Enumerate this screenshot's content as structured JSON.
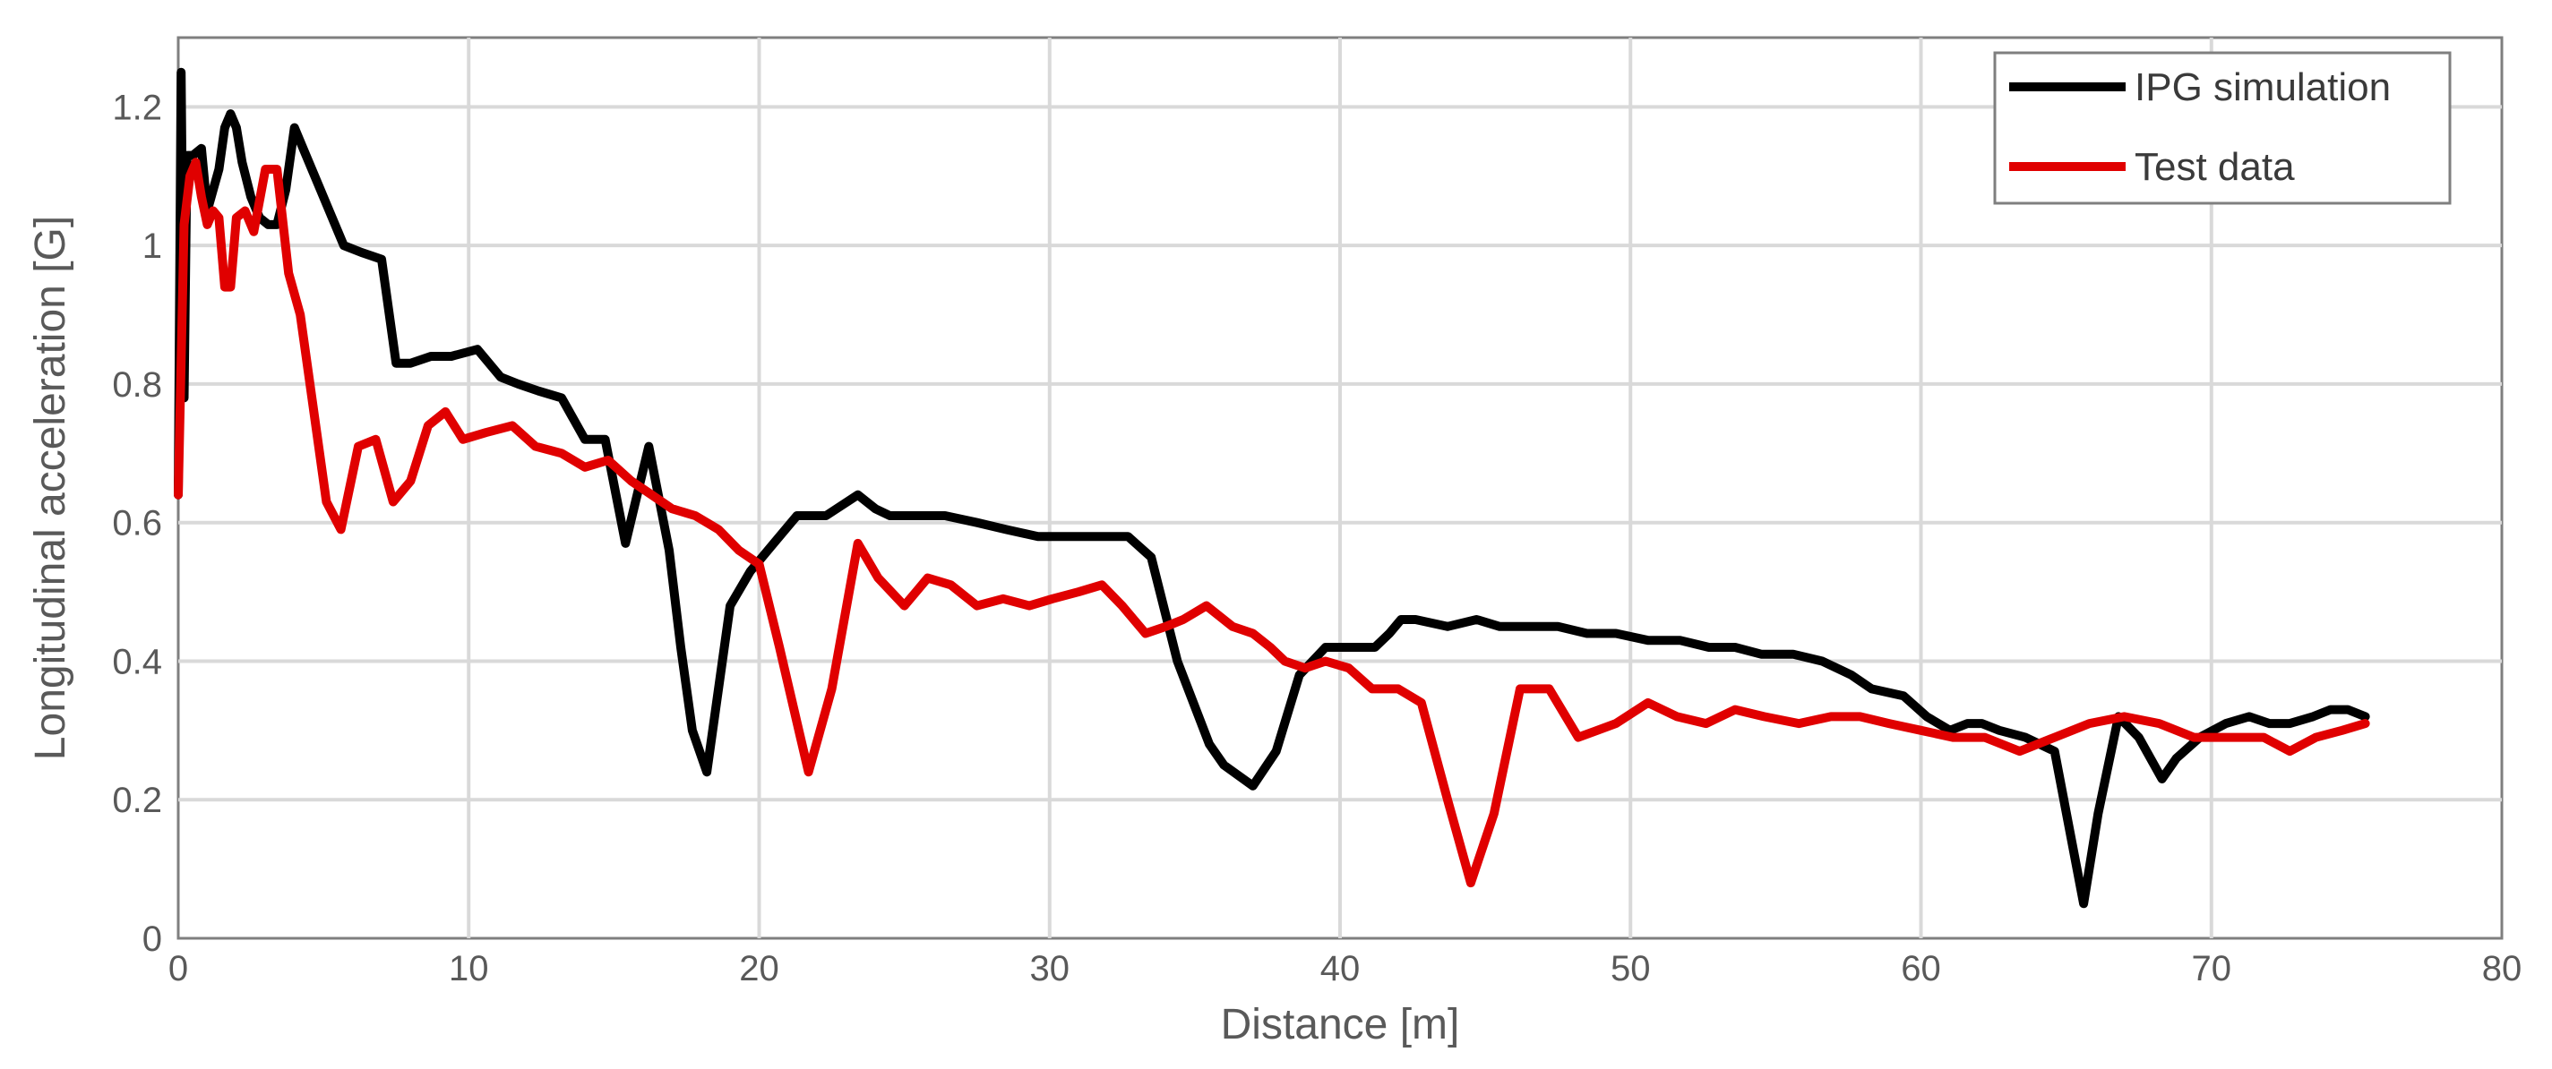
{
  "chart_data": {
    "type": "line",
    "xlabel": "Distance [m]",
    "ylabel": "Longitudinal acceleration [G]",
    "xlim": [
      0,
      80
    ],
    "ylim": [
      0,
      1.3
    ],
    "xticks": [
      0,
      10,
      20,
      30,
      40,
      50,
      60,
      70,
      80
    ],
    "yticks": [
      0,
      0.2,
      0.4,
      0.6,
      0.8,
      1,
      1.2
    ],
    "ytick_labels": [
      "0",
      "0.2",
      "0.4",
      "0.6",
      "0.8",
      "1",
      "1.2"
    ],
    "grid": true,
    "legend_position": "top-right",
    "series": [
      {
        "name": "IPG simulation",
        "color": "#000000",
        "x": [
          0,
          0.1,
          0.2,
          0.3,
          0.5,
          0.8,
          1.0,
          1.2,
          1.4,
          1.6,
          1.8,
          2.0,
          2.2,
          2.5,
          2.8,
          3.1,
          3.4,
          3.7,
          4.0,
          4.3,
          4.7,
          5.2,
          5.7,
          6.3,
          7.0,
          7.5,
          8.0,
          8.7,
          9.4,
          10.3,
          11.1,
          11.7,
          12.4,
          13.2,
          14.0,
          14.7,
          15.4,
          16.2,
          16.9,
          17.3,
          17.7,
          18.2,
          19.0,
          19.7,
          20.5,
          21.3,
          22.3,
          23.4,
          24.0,
          24.5,
          25.3,
          26.4,
          27.5,
          28.5,
          29.6,
          30.7,
          31.7,
          32.7,
          33.5,
          34.4,
          35.5,
          36.0,
          37.0,
          37.8,
          38.6,
          39.5,
          40.4,
          41.2,
          41.7,
          42.1,
          42.6,
          43.7,
          44.7,
          45.5,
          46.5,
          47.5,
          48.5,
          49.5,
          50.6,
          51.7,
          52.7,
          53.6,
          54.5,
          55.6,
          56.6,
          57.6,
          58.3,
          59.4,
          60.2,
          61.0,
          61.6,
          62.1,
          62.7,
          63.6,
          64.6,
          65.6,
          66.1,
          66.8,
          67.5,
          68.3,
          68.8,
          69.6,
          70.5,
          71.3,
          72.0,
          72.7,
          73.5,
          74.1,
          74.7,
          75.3
        ],
        "y": [
          0.64,
          1.25,
          0.78,
          1.13,
          1.13,
          1.14,
          1.05,
          1.08,
          1.11,
          1.17,
          1.19,
          1.17,
          1.12,
          1.07,
          1.04,
          1.03,
          1.03,
          1.08,
          1.17,
          1.14,
          1.1,
          1.05,
          1.0,
          0.99,
          0.98,
          0.83,
          0.83,
          0.84,
          0.84,
          0.85,
          0.81,
          0.8,
          0.79,
          0.78,
          0.72,
          0.72,
          0.57,
          0.71,
          0.56,
          0.42,
          0.3,
          0.24,
          0.48,
          0.53,
          0.57,
          0.61,
          0.61,
          0.64,
          0.62,
          0.61,
          0.61,
          0.61,
          0.6,
          0.59,
          0.58,
          0.58,
          0.58,
          0.58,
          0.55,
          0.4,
          0.28,
          0.25,
          0.22,
          0.27,
          0.38,
          0.42,
          0.42,
          0.42,
          0.44,
          0.46,
          0.46,
          0.45,
          0.46,
          0.45,
          0.45,
          0.45,
          0.44,
          0.44,
          0.43,
          0.43,
          0.42,
          0.42,
          0.41,
          0.41,
          0.4,
          0.38,
          0.36,
          0.35,
          0.32,
          0.3,
          0.31,
          0.31,
          0.3,
          0.29,
          0.27,
          0.05,
          0.18,
          0.32,
          0.29,
          0.23,
          0.26,
          0.29,
          0.31,
          0.32,
          0.31,
          0.31,
          0.32,
          0.33,
          0.33,
          0.32
        ],
        "_note": null
      },
      {
        "name": "Test data",
        "color": "#e00000",
        "x": [
          0,
          0.2,
          0.4,
          0.6,
          0.8,
          1.0,
          1.2,
          1.4,
          1.6,
          1.8,
          2.0,
          2.3,
          2.6,
          3.0,
          3.4,
          3.8,
          4.2,
          4.6,
          5.1,
          5.6,
          6.2,
          6.8,
          7.4,
          8.0,
          8.6,
          9.2,
          9.8,
          10.6,
          11.5,
          12.3,
          13.2,
          14.0,
          14.8,
          15.6,
          16.3,
          17.0,
          17.8,
          18.6,
          19.3,
          20.0,
          20.7,
          21.7,
          22.5,
          23.4,
          24.1,
          25.0,
          25.8,
          26.6,
          27.5,
          28.4,
          29.3,
          30.1,
          31.0,
          31.8,
          32.5,
          33.3,
          34.0,
          34.6,
          35.4,
          36.3,
          37.0,
          37.6,
          38.1,
          38.8,
          39.5,
          40.3,
          41.1,
          42.0,
          42.8,
          43.7,
          44.5,
          45.3,
          46.2,
          47.2,
          48.2,
          49.5,
          50.6,
          51.6,
          52.6,
          53.6,
          54.6,
          55.8,
          56.9,
          57.9,
          58.9,
          60.0,
          61.1,
          62.2,
          63.4,
          64.6,
          65.8,
          67.0,
          68.2,
          69.4,
          70.6,
          71.8,
          72.7,
          73.6,
          74.5,
          75.3
        ],
        "y": [
          0.64,
          1.03,
          1.1,
          1.12,
          1.07,
          1.03,
          1.05,
          1.04,
          0.94,
          0.94,
          1.04,
          1.05,
          1.02,
          1.11,
          1.11,
          0.96,
          0.9,
          0.78,
          0.63,
          0.59,
          0.71,
          0.72,
          0.63,
          0.66,
          0.74,
          0.76,
          0.72,
          0.73,
          0.74,
          0.71,
          0.7,
          0.68,
          0.69,
          0.66,
          0.64,
          0.62,
          0.61,
          0.59,
          0.56,
          0.54,
          0.42,
          0.24,
          0.36,
          0.57,
          0.52,
          0.48,
          0.52,
          0.51,
          0.48,
          0.49,
          0.48,
          0.49,
          0.5,
          0.51,
          0.48,
          0.44,
          0.45,
          0.46,
          0.48,
          0.45,
          0.44,
          0.42,
          0.4,
          0.39,
          0.4,
          0.39,
          0.36,
          0.36,
          0.34,
          0.2,
          0.08,
          0.18,
          0.36,
          0.36,
          0.29,
          0.31,
          0.34,
          0.32,
          0.31,
          0.33,
          0.32,
          0.31,
          0.32,
          0.32,
          0.31,
          0.3,
          0.29,
          0.29,
          0.27,
          0.29,
          0.31,
          0.32,
          0.31,
          0.29,
          0.29,
          0.29,
          0.27,
          0.29,
          0.3,
          0.31
        ],
        "_note": null
      }
    ]
  }
}
